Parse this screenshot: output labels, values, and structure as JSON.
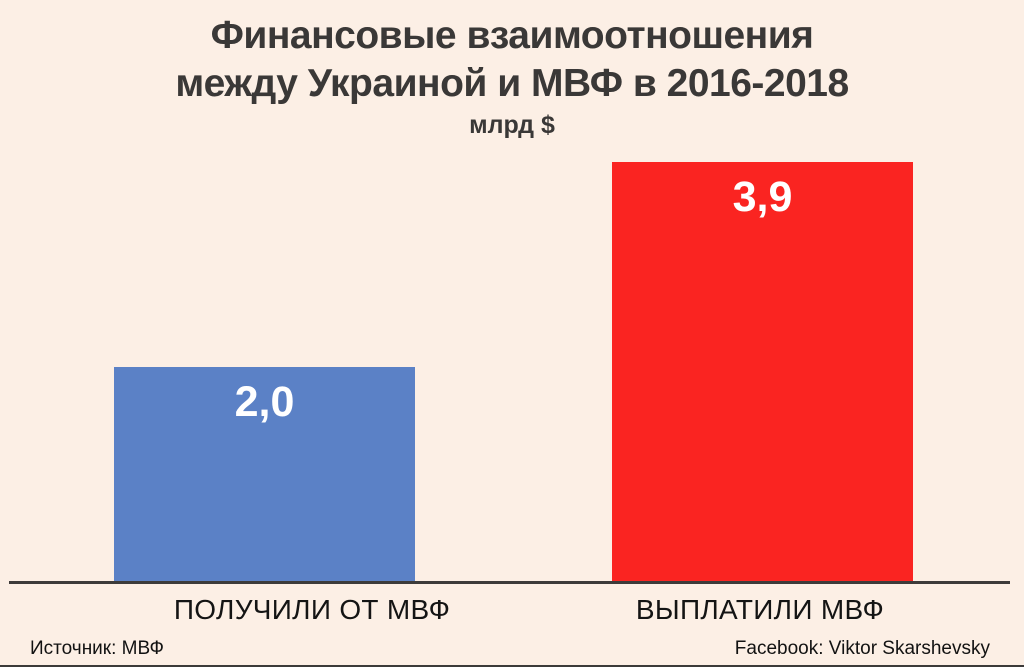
{
  "chart_data": {
    "type": "bar",
    "title": "Финансовые взаимоотношения между Украиной и МВФ в 2016-2018",
    "title_lines": [
      "Финансовые взаимоотношения",
      "между Украиной и МВФ в 2016-2018"
    ],
    "subtitle": "млрд $",
    "categories": [
      "ПОЛУЧИЛИ ОТ МВФ",
      "ВЫПЛАТИЛИ МВФ"
    ],
    "values": [
      2.0,
      3.9
    ],
    "value_labels": [
      "2,0",
      "3,9"
    ],
    "bar_colors": [
      "#5b81c6",
      "#fa2421"
    ],
    "value_label_color": "#ffffff",
    "background_color": "#fcefe5",
    "axis_color": "#3d3b3a",
    "ylim": [
      0,
      4.06
    ],
    "grid": false,
    "legend": false
  },
  "footer": {
    "source": "Источник: МВФ",
    "credit": "Facebook: Viktor Skarshevsky"
  }
}
